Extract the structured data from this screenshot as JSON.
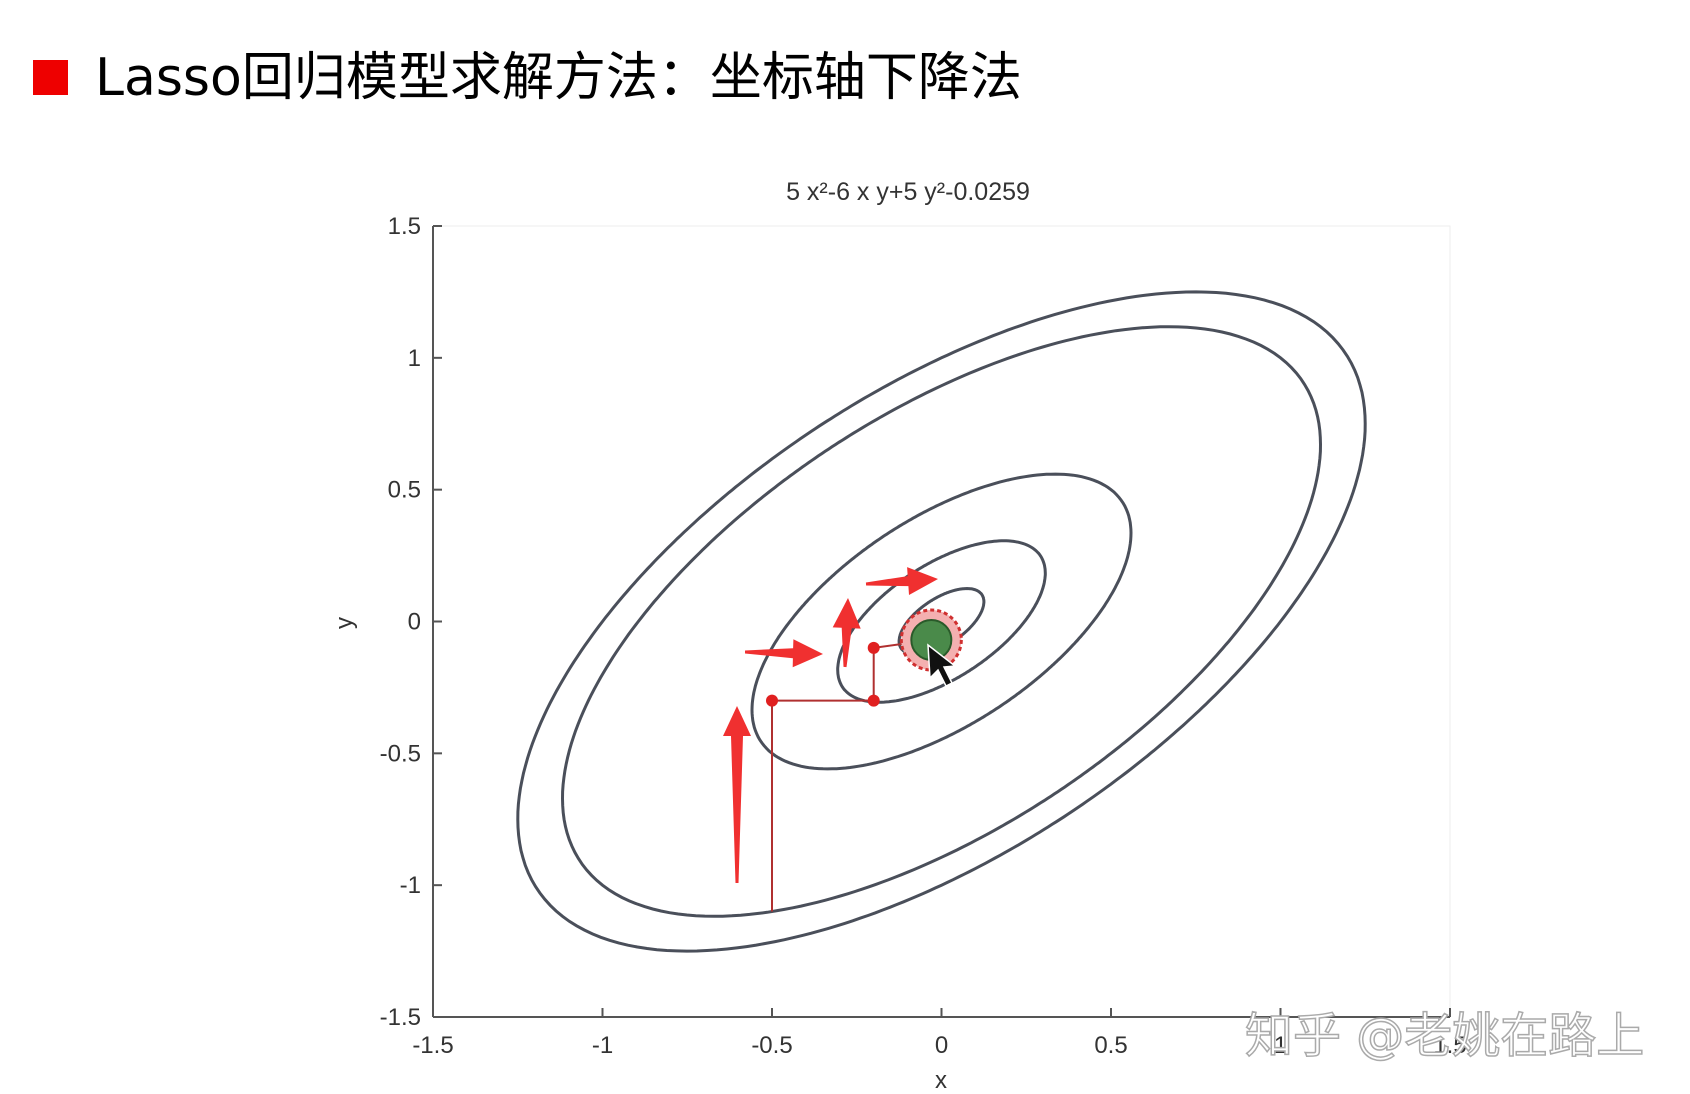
{
  "header": {
    "title": "Lasso回归模型求解方法：坐标轴下降法"
  },
  "chart_data": {
    "type": "contour",
    "title": "5 x²-6 x y+5 y²-0.0259",
    "x_label": "x",
    "y_label": "y",
    "function": "5 x²-6 x y+5 y²",
    "levels": [
      0.05,
      0.3,
      1,
      4,
      5
    ],
    "line_color": "#4a4f5a",
    "path": {
      "x": [
        -0.5,
        -0.5,
        -0.2,
        -0.2,
        -0.03
      ],
      "y": [
        -1.1,
        -0.3,
        -0.3,
        -0.1,
        -0.07
      ],
      "color": "#b03030"
    },
    "xlim": [
      -1.5,
      1.5
    ],
    "ylim": [
      -1.5,
      1.5
    ],
    "xticks": [
      -1.5,
      -1,
      -0.5,
      0,
      0.5,
      1,
      1.5
    ],
    "yticks": [
      -1.5,
      -1,
      -0.5,
      0,
      0.5,
      1,
      1.5
    ]
  },
  "watermark": "知乎 @老姚在路上"
}
